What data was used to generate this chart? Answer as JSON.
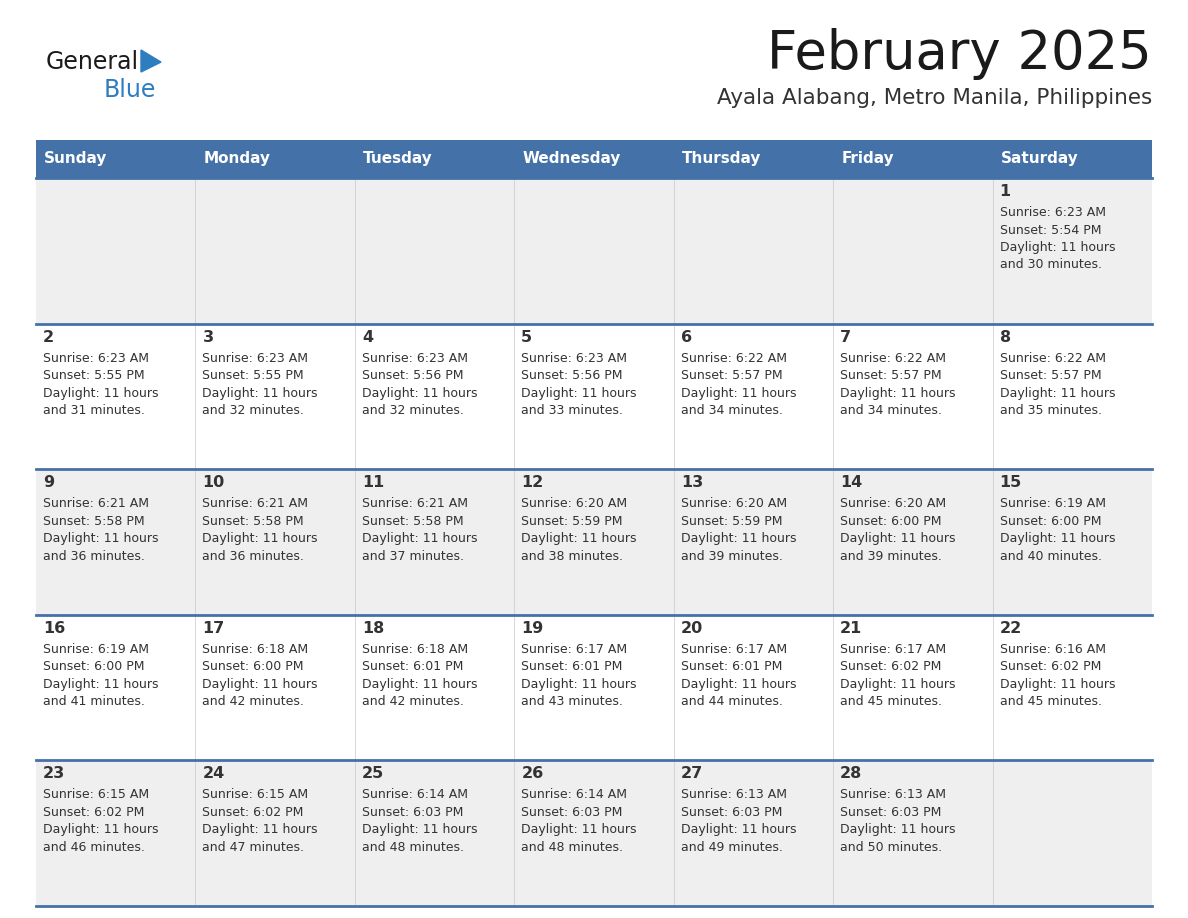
{
  "title": "February 2025",
  "subtitle": "Ayala Alabang, Metro Manila, Philippines",
  "header_bg": "#4472A8",
  "header_text_color": "#FFFFFF",
  "cell_bg_odd": "#EFEFEF",
  "cell_bg_even": "#FFFFFF",
  "separator_color": "#4472A8",
  "text_color": "#333333",
  "day_headers": [
    "Sunday",
    "Monday",
    "Tuesday",
    "Wednesday",
    "Thursday",
    "Friday",
    "Saturday"
  ],
  "logo_general_color": "#1a1a1a",
  "logo_blue_color": "#2E7DC0",
  "weeks": [
    [
      {
        "day": null,
        "sunrise": null,
        "sunset": null,
        "daylight": null
      },
      {
        "day": null,
        "sunrise": null,
        "sunset": null,
        "daylight": null
      },
      {
        "day": null,
        "sunrise": null,
        "sunset": null,
        "daylight": null
      },
      {
        "day": null,
        "sunrise": null,
        "sunset": null,
        "daylight": null
      },
      {
        "day": null,
        "sunrise": null,
        "sunset": null,
        "daylight": null
      },
      {
        "day": null,
        "sunrise": null,
        "sunset": null,
        "daylight": null
      },
      {
        "day": 1,
        "sunrise": "6:23 AM",
        "sunset": "5:54 PM",
        "daylight": "11 hours and 30 minutes."
      }
    ],
    [
      {
        "day": 2,
        "sunrise": "6:23 AM",
        "sunset": "5:55 PM",
        "daylight": "11 hours and 31 minutes."
      },
      {
        "day": 3,
        "sunrise": "6:23 AM",
        "sunset": "5:55 PM",
        "daylight": "11 hours and 32 minutes."
      },
      {
        "day": 4,
        "sunrise": "6:23 AM",
        "sunset": "5:56 PM",
        "daylight": "11 hours and 32 minutes."
      },
      {
        "day": 5,
        "sunrise": "6:23 AM",
        "sunset": "5:56 PM",
        "daylight": "11 hours and 33 minutes."
      },
      {
        "day": 6,
        "sunrise": "6:22 AM",
        "sunset": "5:57 PM",
        "daylight": "11 hours and 34 minutes."
      },
      {
        "day": 7,
        "sunrise": "6:22 AM",
        "sunset": "5:57 PM",
        "daylight": "11 hours and 34 minutes."
      },
      {
        "day": 8,
        "sunrise": "6:22 AM",
        "sunset": "5:57 PM",
        "daylight": "11 hours and 35 minutes."
      }
    ],
    [
      {
        "day": 9,
        "sunrise": "6:21 AM",
        "sunset": "5:58 PM",
        "daylight": "11 hours and 36 minutes."
      },
      {
        "day": 10,
        "sunrise": "6:21 AM",
        "sunset": "5:58 PM",
        "daylight": "11 hours and 36 minutes."
      },
      {
        "day": 11,
        "sunrise": "6:21 AM",
        "sunset": "5:58 PM",
        "daylight": "11 hours and 37 minutes."
      },
      {
        "day": 12,
        "sunrise": "6:20 AM",
        "sunset": "5:59 PM",
        "daylight": "11 hours and 38 minutes."
      },
      {
        "day": 13,
        "sunrise": "6:20 AM",
        "sunset": "5:59 PM",
        "daylight": "11 hours and 39 minutes."
      },
      {
        "day": 14,
        "sunrise": "6:20 AM",
        "sunset": "6:00 PM",
        "daylight": "11 hours and 39 minutes."
      },
      {
        "day": 15,
        "sunrise": "6:19 AM",
        "sunset": "6:00 PM",
        "daylight": "11 hours and 40 minutes."
      }
    ],
    [
      {
        "day": 16,
        "sunrise": "6:19 AM",
        "sunset": "6:00 PM",
        "daylight": "11 hours and 41 minutes."
      },
      {
        "day": 17,
        "sunrise": "6:18 AM",
        "sunset": "6:00 PM",
        "daylight": "11 hours and 42 minutes."
      },
      {
        "day": 18,
        "sunrise": "6:18 AM",
        "sunset": "6:01 PM",
        "daylight": "11 hours and 42 minutes."
      },
      {
        "day": 19,
        "sunrise": "6:17 AM",
        "sunset": "6:01 PM",
        "daylight": "11 hours and 43 minutes."
      },
      {
        "day": 20,
        "sunrise": "6:17 AM",
        "sunset": "6:01 PM",
        "daylight": "11 hours and 44 minutes."
      },
      {
        "day": 21,
        "sunrise": "6:17 AM",
        "sunset": "6:02 PM",
        "daylight": "11 hours and 45 minutes."
      },
      {
        "day": 22,
        "sunrise": "6:16 AM",
        "sunset": "6:02 PM",
        "daylight": "11 hours and 45 minutes."
      }
    ],
    [
      {
        "day": 23,
        "sunrise": "6:15 AM",
        "sunset": "6:02 PM",
        "daylight": "11 hours and 46 minutes."
      },
      {
        "day": 24,
        "sunrise": "6:15 AM",
        "sunset": "6:02 PM",
        "daylight": "11 hours and 47 minutes."
      },
      {
        "day": 25,
        "sunrise": "6:14 AM",
        "sunset": "6:03 PM",
        "daylight": "11 hours and 48 minutes."
      },
      {
        "day": 26,
        "sunrise": "6:14 AM",
        "sunset": "6:03 PM",
        "daylight": "11 hours and 48 minutes."
      },
      {
        "day": 27,
        "sunrise": "6:13 AM",
        "sunset": "6:03 PM",
        "daylight": "11 hours and 49 minutes."
      },
      {
        "day": 28,
        "sunrise": "6:13 AM",
        "sunset": "6:03 PM",
        "daylight": "11 hours and 50 minutes."
      },
      {
        "day": null,
        "sunrise": null,
        "sunset": null,
        "daylight": null
      }
    ]
  ]
}
